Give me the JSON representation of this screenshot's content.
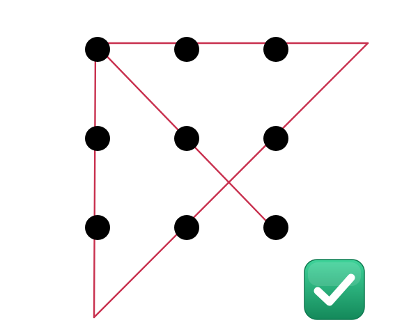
{
  "puzzle": {
    "grid_rows": 3,
    "grid_cols": 3,
    "dot_color": "#000000",
    "line_color": "#c8304e",
    "line_count": 4,
    "status": "solved"
  },
  "badge": {
    "icon": "check-mark-icon",
    "color": "#23a672",
    "checked": true
  }
}
